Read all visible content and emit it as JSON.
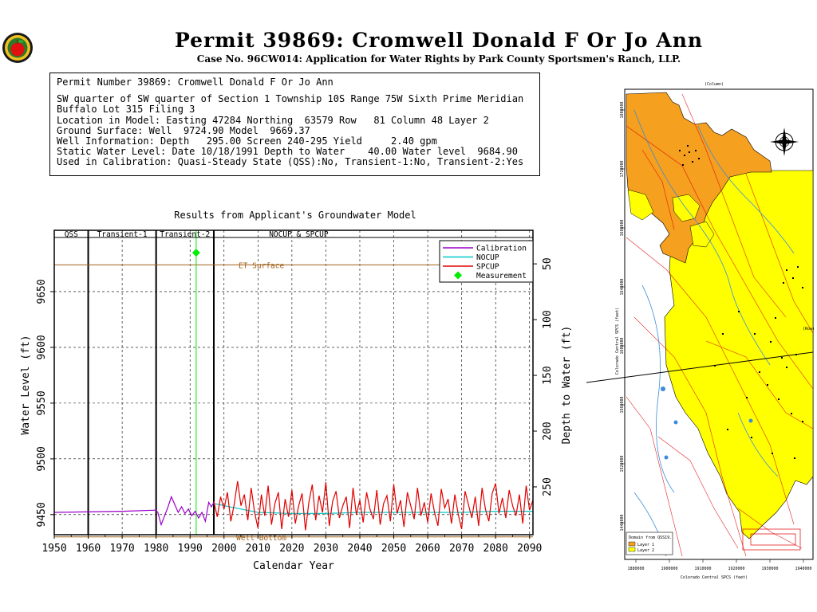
{
  "header": {
    "title": "Permit 39869:  Cromwell Donald F Or Jo Ann",
    "subtitle": "Case No. 96CW014: Application for Water Rights by Park County Sportsmen's Ranch, LLP."
  },
  "info": {
    "lines": [
      "Permit Number 39869: Cromwell Donald F Or Jo Ann",
      "SW quarter of SW quarter of Section 1 Township 10S Range 75W Sixth Prime Meridian",
      "Buffalo Lot 315 Filing 3",
      "Location in Model: Easting 47284 Northing  63579 Row   81 Column 48 Layer 2",
      "Ground Surface: Well  9724.90 Model  9669.37",
      "Well Information: Depth   295.00 Screen 240-295 Yield     2.40 gpm",
      "Static Water Level: Date 10/18/1991 Depth to Water    40.00 Water level  9684.90",
      "Used in Calibration: Quasi-Steady State (QSS):No, Transient-1:No, Transient-2:Yes"
    ]
  },
  "chart_data": {
    "type": "line",
    "title": "Results from Applicant's Groundwater Model",
    "xlabel": "Calendar Year",
    "ylabel": "Water Level (ft)",
    "y2label": "Depth to Water (ft)",
    "xlim": [
      1950,
      2091
    ],
    "ylim": [
      9432,
      9705
    ],
    "x_ticks": [
      1950,
      1960,
      1970,
      1980,
      1990,
      2000,
      2010,
      2020,
      2030,
      2040,
      2050,
      2060,
      2070,
      2080,
      2090
    ],
    "y_ticks": [
      9450,
      9500,
      9550,
      9600,
      9650
    ],
    "y2_ticks": [
      50,
      100,
      150,
      200,
      250
    ],
    "ground_surface": 9724.9,
    "grid": true,
    "legend_position": "top-right",
    "periods": [
      {
        "label": "QSS",
        "start": 1950,
        "end": 1960
      },
      {
        "label": "Transient-1",
        "start": 1960,
        "end": 1980
      },
      {
        "label": "Transient-2",
        "start": 1980,
        "end": 1997
      },
      {
        "label": "NOCUP & SPCUP",
        "start": 1997,
        "end": 2091
      }
    ],
    "period_dividers": [
      1960,
      1980,
      1997
    ],
    "reference_lines": [
      {
        "label": "ET Surface",
        "y": 9674,
        "color": "#a0601a"
      },
      {
        "label": "Well Bottom",
        "y": 9430,
        "color": "#a0601a"
      }
    ],
    "measurement": {
      "name": "Measurement",
      "x": 1991.8,
      "y": 9684.9,
      "color": "#00ee00"
    },
    "series": [
      {
        "name": "Calibration",
        "color": "#9a00c8",
        "x": [
          1950,
          1970,
          1979.9,
          1980.5,
          1981.5,
          1982.5,
          1983.5,
          1984.5,
          1985.5,
          1986.5,
          1987.5,
          1988.5,
          1989.5,
          1990.5,
          1991.5,
          1992.5,
          1993.5,
          1994.5,
          1995.5,
          1996.3,
          1997
        ],
        "y": [
          9452,
          9453,
          9454,
          9452,
          9441,
          9449,
          9457,
          9466,
          9459,
          9452,
          9457,
          9451,
          9455,
          9449,
          9453,
          9447,
          9452,
          9444,
          9461,
          9457,
          9461
        ]
      },
      {
        "name": "NOCUP",
        "color": "#00c8c8",
        "x": [
          1997,
          2000,
          2005,
          2010,
          2020,
          2030,
          2040,
          2050,
          2060,
          2070,
          2080,
          2091
        ],
        "y": [
          9460,
          9458,
          9455,
          9452,
          9451,
          9451,
          9452,
          9452,
          9452,
          9452,
          9453,
          9453
        ]
      },
      {
        "name": "SPCUP",
        "color": "#e00000",
        "x": [
          1997,
          1998,
          1999,
          2000,
          2001,
          2002,
          2003,
          2004,
          2005,
          2006,
          2007,
          2008,
          2009,
          2010,
          2011,
          2012,
          2013,
          2014,
          2015,
          2016,
          2017,
          2018,
          2019,
          2020,
          2021,
          2022,
          2023,
          2024,
          2025,
          2026,
          2027,
          2028,
          2029,
          2030,
          2031,
          2032,
          2033,
          2034,
          2035,
          2036,
          2037,
          2038,
          2039,
          2040,
          2041,
          2042,
          2043,
          2044,
          2045,
          2046,
          2047,
          2048,
          2049,
          2050,
          2051,
          2052,
          2053,
          2054,
          2055,
          2056,
          2057,
          2058,
          2059,
          2060,
          2061,
          2062,
          2063,
          2064,
          2065,
          2066,
          2067,
          2068,
          2069,
          2070,
          2071,
          2072,
          2073,
          2074,
          2075,
          2076,
          2077,
          2078,
          2079,
          2080,
          2081,
          2082,
          2083,
          2084,
          2085,
          2086,
          2087,
          2088,
          2089,
          2090,
          2091
        ],
        "y": [
          9462,
          9448,
          9466,
          9455,
          9470,
          9444,
          9459,
          9480,
          9458,
          9468,
          9445,
          9474,
          9452,
          9438,
          9468,
          9449,
          9476,
          9441,
          9460,
          9470,
          9437,
          9464,
          9448,
          9472,
          9442,
          9458,
          9469,
          9436,
          9461,
          9477,
          9445,
          9467,
          9452,
          9479,
          9440,
          9462,
          9471,
          9447,
          9458,
          9466,
          9438,
          9474,
          9450,
          9463,
          9443,
          9470,
          9455,
          9446,
          9472,
          9441,
          9460,
          9467,
          9444,
          9477,
          9451,
          9463,
          9439,
          9470,
          9458,
          9446,
          9474,
          9449,
          9461,
          9443,
          9469,
          9452,
          9440,
          9473,
          9456,
          9464,
          9442,
          9468,
          9450,
          9437,
          9471,
          9459,
          9447,
          9466,
          9440,
          9474,
          9455,
          9444,
          9469,
          9478,
          9451,
          9465,
          9447,
          9472,
          9458,
          9449,
          9468,
          9442,
          9476,
          9454,
          9463
        ]
      }
    ]
  },
  "map": {
    "top_axis_label": "(Column)",
    "left_axis_label": "Colorado Central SPCS (feet)",
    "right_axis_label": "(Row)",
    "bottom_axis_label": "Colorado Central SPCS (feet)",
    "bottom_ticks": [
      "1880000",
      "1900000",
      "1910000",
      "1920000",
      "1930000",
      "1940000"
    ],
    "left_ticks": [
      "1800000",
      "1720000",
      "1680000",
      "1640000",
      "1600000",
      "1560000",
      "1520000",
      "1440000"
    ],
    "legend_title": "Domain from QSS19.",
    "legend_items": [
      {
        "label": "Layer 1",
        "color": "#f5a01e"
      },
      {
        "label": "Layer 2",
        "color": "#ffff00"
      }
    ],
    "colors": {
      "layer1": "#f5a01e",
      "layer2": "#ffff00",
      "roads": "#e00000",
      "streams": "#3c8cdc"
    }
  }
}
